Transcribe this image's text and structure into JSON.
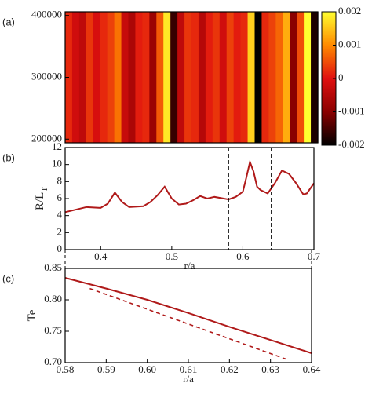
{
  "chart_data": [
    {
      "type": "heatmap",
      "panel_label": "(a)",
      "x": [
        0.35,
        0.36,
        0.37,
        0.38,
        0.39,
        0.4,
        0.41,
        0.42,
        0.43,
        0.44,
        0.45,
        0.46,
        0.47,
        0.48,
        0.49,
        0.5,
        0.51,
        0.52,
        0.53,
        0.54,
        0.55,
        0.56,
        0.57,
        0.58,
        0.59,
        0.6,
        0.61,
        0.62,
        0.63,
        0.64,
        0.65,
        0.66,
        0.67,
        0.68,
        0.69,
        0.7
      ],
      "values": [
        0.0002,
        -0.0002,
        -0.0004,
        0.0003,
        -0.0001,
        0.0002,
        0.0004,
        0.0008,
        -0.0003,
        -0.0006,
        0.0001,
        0.0002,
        -0.0008,
        0.0006,
        0.0018,
        -0.0016,
        -0.0004,
        0.0003,
        0.0002,
        -0.0005,
        0.0001,
        0.0003,
        -0.0002,
        0.0004,
        0.0001,
        0.0002,
        0.0016,
        -0.002,
        0.0002,
        0.0004,
        0.0007,
        0.0013,
        -0.001,
        0.0005,
        0.002,
        -0.0018
      ],
      "xlim": [
        0.35,
        0.7
      ],
      "ylim": [
        194000,
        406000
      ],
      "yticks": [
        200000,
        300000,
        400000
      ],
      "zlim": [
        -0.002,
        0.002
      ],
      "zticks": [
        0.002,
        0.001,
        0,
        -0.001,
        -0.002
      ]
    },
    {
      "type": "line",
      "panel_label": "(b)",
      "xlabel": "r/a",
      "ylabel": "R/L",
      "ylabel_subscript": "T",
      "color": "#b01a1a",
      "x": [
        0.35,
        0.36,
        0.38,
        0.4,
        0.41,
        0.42,
        0.43,
        0.44,
        0.46,
        0.47,
        0.48,
        0.49,
        0.5,
        0.51,
        0.52,
        0.53,
        0.54,
        0.55,
        0.56,
        0.58,
        0.59,
        0.6,
        0.605,
        0.61,
        0.615,
        0.62,
        0.625,
        0.635,
        0.645,
        0.655,
        0.665,
        0.675,
        0.685,
        0.69,
        0.7
      ],
      "values": [
        4.4,
        4.6,
        5.0,
        4.9,
        5.4,
        6.7,
        5.6,
        5.0,
        5.1,
        5.6,
        6.4,
        7.4,
        6.0,
        5.3,
        5.4,
        5.8,
        6.3,
        6.0,
        6.2,
        5.9,
        6.2,
        6.8,
        8.5,
        10.3,
        9.2,
        7.4,
        7.0,
        6.6,
        7.8,
        9.3,
        8.9,
        7.8,
        6.5,
        6.6,
        7.8
      ],
      "markers": [
        0.58,
        0.64
      ],
      "xlim": [
        0.35,
        0.7
      ],
      "xticks": [
        0.4,
        0.5,
        0.6,
        0.7
      ],
      "ylim": [
        0,
        12
      ],
      "yticks": [
        0,
        2,
        4,
        6,
        8,
        10,
        12
      ]
    },
    {
      "type": "line",
      "panel_label": "(c)",
      "xlabel": "r/a",
      "ylabel": "Te",
      "color": "#b01a1a",
      "x": [
        0.58,
        0.59,
        0.6,
        0.61,
        0.62,
        0.63,
        0.64
      ],
      "values": [
        0.835,
        0.818,
        0.8,
        0.779,
        0.757,
        0.736,
        0.715
      ],
      "fit": {
        "x": [
          0.586,
          0.634
        ],
        "values": [
          0.818,
          0.705
        ]
      },
      "xlim": [
        0.58,
        0.64
      ],
      "xticks": [
        0.58,
        0.59,
        {
          "value": 0.6,
          "label": "0.60"
        },
        0.61,
        0.62,
        0.63,
        0.64
      ],
      "ylim": [
        0.7,
        0.85
      ],
      "yticks": [
        {
          "value": 0.7,
          "label": "0.70"
        },
        0.75,
        {
          "value": 0.8,
          "label": "0.80"
        },
        0.85
      ]
    }
  ]
}
